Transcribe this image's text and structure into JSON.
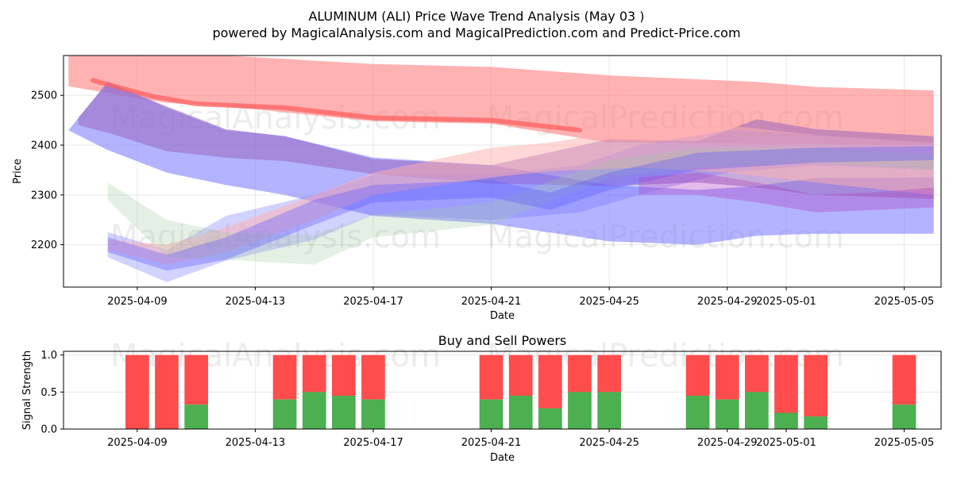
{
  "title": "ALUMINUM (ALI) Price Wave Trend Analysis (May 03 )",
  "subtitle": "powered by MagicalAnalysis.com and MagicalPrediction.com and Predict-Price.com",
  "watermarks": [
    "MagicalAnalysis.com",
    "MagicalPrediction.com"
  ],
  "chart_data": [
    {
      "type": "area",
      "title": "",
      "xlabel": "Date",
      "ylabel": "Price",
      "xlim": [
        "2025-04-06T12:00",
        "2025-05-06T06:00"
      ],
      "ylim": [
        2115,
        2580
      ],
      "yticks": [
        2200,
        2300,
        2400,
        2500
      ],
      "xticks": [
        "2025-04-09",
        "2025-04-13",
        "2025-04-17",
        "2025-04-21",
        "2025-04-25",
        "2025-04-29",
        "2025-05-01",
        "2025-05-05"
      ],
      "grid": true,
      "series": [
        {
          "color": "#ff7f7f",
          "opacity": 0.6,
          "x": [
            "2025-04-06T16:00",
            "2025-04-10T00:00",
            "2025-04-12T00:00",
            "2025-04-17T00:00",
            "2025-04-21T00:00",
            "2025-04-25T00:00",
            "2025-04-30T00:00",
            "2025-05-02T00:00",
            "2025-05-06T00:00"
          ],
          "upper": [
            2580,
            2580,
            2580,
            2563,
            2557,
            2540,
            2527,
            2517,
            2510
          ],
          "lower": [
            2518,
            2485,
            2478,
            2448,
            2443,
            2405,
            2403,
            2402,
            2400
          ]
        },
        {
          "color": "#8080ff",
          "opacity": 0.6,
          "x": [
            "2025-04-06T16:00",
            "2025-04-08T00:00",
            "2025-04-10T00:00",
            "2025-04-12T00:00",
            "2025-04-14T00:00",
            "2025-04-17T00:00",
            "2025-04-21T00:00",
            "2025-04-25T00:00",
            "2025-04-28T00:00",
            "2025-04-30T00:00",
            "2025-05-02T00:00",
            "2025-05-06T00:00"
          ],
          "upper": [
            2430,
            2528,
            2475,
            2430,
            2418,
            2375,
            2360,
            2320,
            2310,
            2318,
            2334,
            2335
          ],
          "lower": [
            2430,
            2390,
            2345,
            2320,
            2300,
            2258,
            2242,
            2207,
            2200,
            2218,
            2222,
            2222
          ]
        },
        {
          "color": "#9966bb",
          "opacity": 0.55,
          "x": [
            "2025-04-07T00:00",
            "2025-04-08T00:00",
            "2025-04-10T00:00",
            "2025-04-12T00:00",
            "2025-04-14T00:00",
            "2025-04-17T00:00",
            "2025-04-21T00:00",
            "2025-04-25T00:00",
            "2025-04-28T00:00",
            "2025-04-30T00:00",
            "2025-05-02T00:00",
            "2025-05-06T00:00"
          ],
          "upper": [
            2455,
            2525,
            2478,
            2432,
            2418,
            2372,
            2360,
            2412,
            2408,
            2452,
            2432,
            2418
          ],
          "lower": [
            2440,
            2425,
            2388,
            2375,
            2368,
            2342,
            2323,
            2318,
            2325,
            2315,
            2300,
            2292
          ]
        },
        {
          "color": "#6a6aff",
          "opacity": 0.3,
          "x": [
            "2025-04-08T00:00",
            "2025-04-10T00:00",
            "2025-04-12T00:00",
            "2025-04-15T00:00",
            "2025-04-17T00:00",
            "2025-04-21T00:00",
            "2025-04-24T00:00",
            "2025-04-26T00:00",
            "2025-04-29T00:00",
            "2025-05-02T00:00",
            "2025-05-06T00:00"
          ],
          "upper": [
            2225,
            2190,
            2258,
            2300,
            2340,
            2340,
            2360,
            2400,
            2430,
            2420,
            2405
          ],
          "lower": [
            2175,
            2125,
            2168,
            2210,
            2260,
            2250,
            2265,
            2300,
            2345,
            2360,
            2350
          ]
        },
        {
          "color": "#ffb0b0",
          "opacity": 0.5,
          "x": [
            "2025-04-08T00:00",
            "2025-04-10T00:00",
            "2025-04-12T00:00",
            "2025-04-15T00:00",
            "2025-04-17T00:00",
            "2025-04-21T00:00",
            "2025-04-23T00:00",
            "2025-04-26T00:00",
            "2025-04-29T00:00",
            "2025-05-02T00:00",
            "2025-05-06T00:00"
          ],
          "upper": [
            2210,
            2200,
            2235,
            2300,
            2345,
            2395,
            2405,
            2435,
            2440,
            2420,
            2405
          ],
          "lower": [
            2190,
            2160,
            2185,
            2250,
            2300,
            2335,
            2348,
            2355,
            2345,
            2325,
            2300
          ]
        },
        {
          "color": "#a0c8a0",
          "opacity": 0.28,
          "x": [
            "2025-04-08T00:00",
            "2025-04-10T00:00",
            "2025-04-12T00:00",
            "2025-04-15T00:00",
            "2025-04-17T00:00",
            "2025-04-21T00:00",
            "2025-04-25T00:00",
            "2025-04-28T00:00",
            "2025-05-02T00:00",
            "2025-05-06T00:00"
          ],
          "upper": [
            2325,
            2250,
            2225,
            2220,
            2260,
            2285,
            2370,
            2395,
            2395,
            2380
          ],
          "lower": [
            2290,
            2175,
            2170,
            2160,
            2215,
            2240,
            2335,
            2355,
            2365,
            2350
          ]
        },
        {
          "color": "#5a5aff",
          "opacity": 0.35,
          "x": [
            "2025-04-08T00:00",
            "2025-04-10T00:00",
            "2025-04-12T00:00",
            "2025-04-15T00:00",
            "2025-04-17T00:00",
            "2025-04-21T00:00",
            "2025-04-23T00:00",
            "2025-04-25T00:00",
            "2025-04-28T00:00",
            "2025-05-02T00:00",
            "2025-05-06T00:00"
          ],
          "upper": [
            2215,
            2180,
            2215,
            2290,
            2320,
            2330,
            2305,
            2345,
            2385,
            2395,
            2398
          ],
          "lower": [
            2185,
            2148,
            2170,
            2240,
            2285,
            2295,
            2270,
            2310,
            2350,
            2365,
            2370
          ]
        },
        {
          "color": "#b040c0",
          "opacity": 0.35,
          "x": [
            "2025-04-26T00:00",
            "2025-04-28T00:00",
            "2025-04-30T00:00",
            "2025-05-02T00:00",
            "2025-05-04T00:00",
            "2025-05-06T00:00"
          ],
          "upper": [
            2335,
            2345,
            2325,
            2300,
            2305,
            2315
          ],
          "lower": [
            2300,
            2300,
            2285,
            2265,
            2270,
            2275
          ]
        }
      ],
      "mean_line": {
        "color": "#ff6060",
        "x": [
          "2025-04-07T12:00",
          "2025-04-09T12:00",
          "2025-04-11T00:00",
          "2025-04-14T00:00",
          "2025-04-17T00:00",
          "2025-04-21T00:00",
          "2025-04-24T00:00"
        ],
        "y": [
          2530,
          2498,
          2483,
          2475,
          2455,
          2450,
          2430
        ]
      }
    },
    {
      "type": "bar",
      "title": "Buy and Sell Powers",
      "xlabel": "Date",
      "ylabel": "Signal Strength",
      "ylim": [
        0,
        1.05
      ],
      "yticks": [
        0.0,
        0.5,
        1.0
      ],
      "xticks": [
        "2025-04-09",
        "2025-04-13",
        "2025-04-17",
        "2025-04-21",
        "2025-04-25",
        "2025-04-29",
        "2025-05-01",
        "2025-05-05"
      ],
      "grid": true,
      "buy_color": "#4caf50",
      "sell_color": "#ff4c4c",
      "bars": [
        {
          "date": "2025-04-09",
          "buy": 0.0
        },
        {
          "date": "2025-04-10",
          "buy": 0.0
        },
        {
          "date": "2025-04-11",
          "buy": 0.33
        },
        {
          "date": "2025-04-14",
          "buy": 0.4
        },
        {
          "date": "2025-04-15",
          "buy": 0.5
        },
        {
          "date": "2025-04-16",
          "buy": 0.45
        },
        {
          "date": "2025-04-17",
          "buy": 0.4
        },
        {
          "date": "2025-04-21",
          "buy": 0.4
        },
        {
          "date": "2025-04-22",
          "buy": 0.45
        },
        {
          "date": "2025-04-23",
          "buy": 0.28
        },
        {
          "date": "2025-04-24",
          "buy": 0.5
        },
        {
          "date": "2025-04-25",
          "buy": 0.5
        },
        {
          "date": "2025-04-28",
          "buy": 0.45
        },
        {
          "date": "2025-04-29",
          "buy": 0.4
        },
        {
          "date": "2025-04-30",
          "buy": 0.5
        },
        {
          "date": "2025-05-01",
          "buy": 0.22
        },
        {
          "date": "2025-05-02",
          "buy": 0.17
        },
        {
          "date": "2025-05-05",
          "buy": 0.33
        }
      ]
    }
  ]
}
